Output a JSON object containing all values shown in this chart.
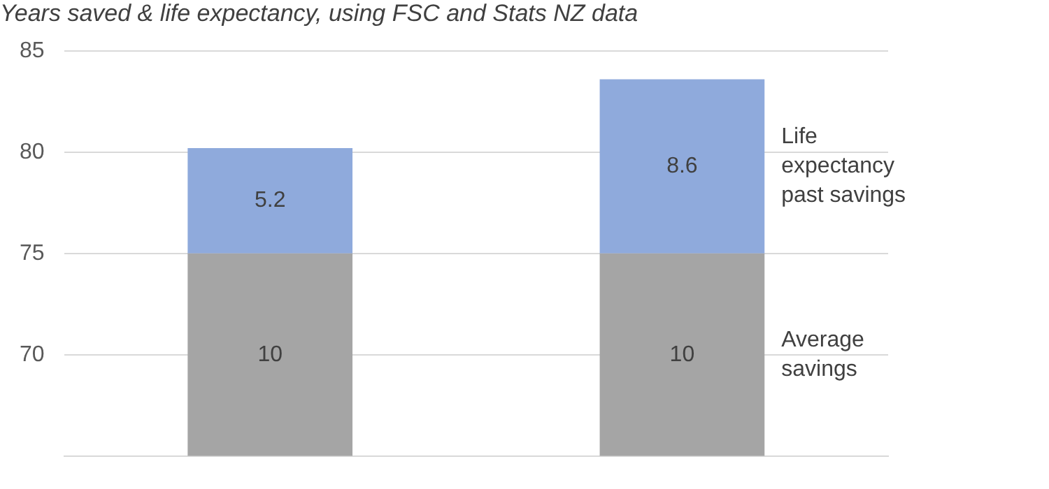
{
  "chart_data": {
    "type": "bar",
    "title": "Years saved & life expectancy, using FSC and Stats NZ data",
    "categories": [
      null,
      null
    ],
    "series": [
      {
        "name": "Average savings",
        "color": "#a5a5a5",
        "values": [
          10,
          10
        ],
        "base": [
          65,
          65
        ]
      },
      {
        "name": "Life expectancy past savings",
        "color": "#8faadc",
        "values": [
          5.2,
          8.6
        ],
        "base": [
          75,
          75
        ]
      }
    ],
    "ylim": [
      65,
      85
    ],
    "yticks": [
      70,
      75,
      80,
      85
    ],
    "grid": "y",
    "data_labels": true,
    "legend": false
  }
}
